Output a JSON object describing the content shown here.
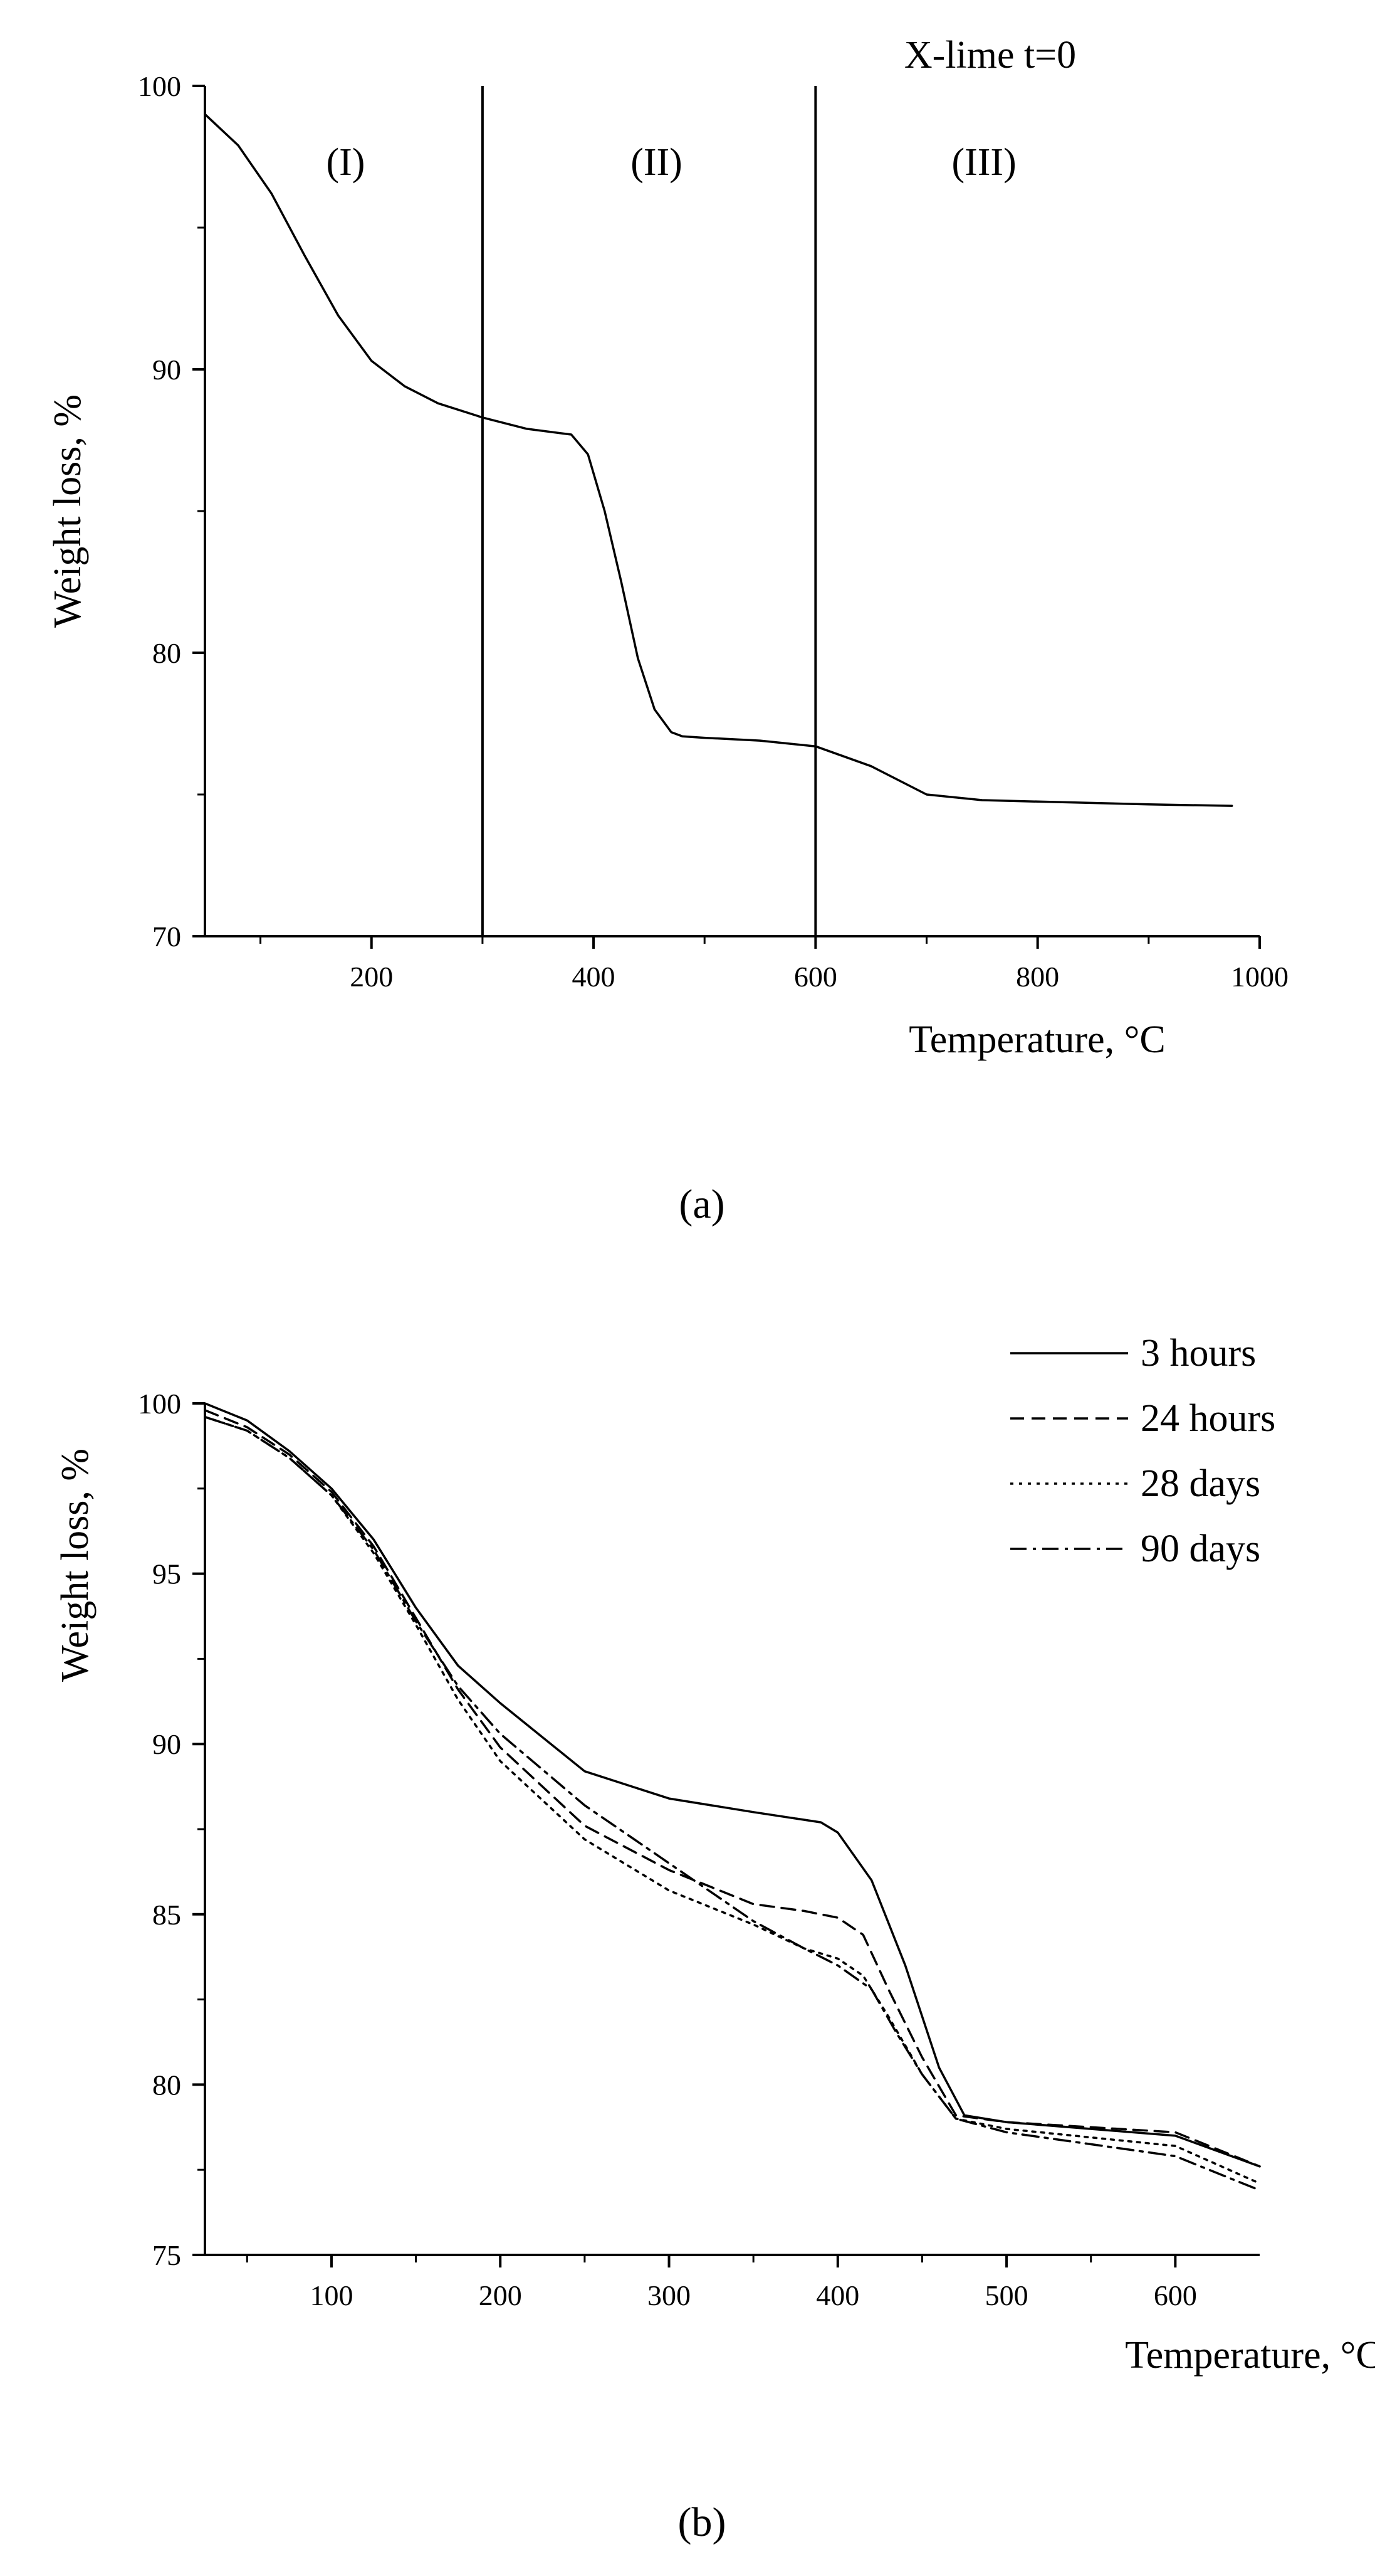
{
  "chart_data": [
    {
      "type": "line",
      "panel_label": "(a)",
      "title": "X-lime t=0",
      "xlabel": "Temperature, °C",
      "ylabel": "Weight loss, %",
      "xlim": [
        50,
        1000
      ],
      "ylim": [
        70,
        100
      ],
      "xticks": [
        200,
        400,
        600,
        800,
        1000
      ],
      "yticks": [
        70,
        80,
        90,
        100
      ],
      "grid": false,
      "vlines": [
        300,
        600
      ],
      "region_labels": [
        {
          "text": "(I)",
          "x": 175,
          "y": 97.3
        },
        {
          "text": "(II)",
          "x": 455,
          "y": 97.3
        },
        {
          "text": "(III)",
          "x": 750,
          "y": 97.3
        }
      ],
      "series": [
        {
          "name": "X-lime t=0",
          "style": "solid",
          "x": [
            50,
            80,
            110,
            140,
            170,
            200,
            230,
            260,
            300,
            340,
            380,
            395,
            410,
            425,
            440,
            455,
            470,
            480,
            500,
            550,
            600,
            650,
            700,
            750,
            800,
            900,
            975
          ],
          "y": [
            99,
            97.9,
            96.2,
            94.0,
            91.9,
            90.3,
            89.4,
            88.8,
            88.3,
            87.9,
            87.7,
            87.0,
            85.0,
            82.5,
            79.8,
            78.0,
            77.2,
            77.05,
            77.0,
            76.9,
            76.7,
            76.0,
            75.0,
            74.8,
            74.75,
            74.65,
            74.6
          ]
        }
      ]
    },
    {
      "type": "line",
      "panel_label": "(b)",
      "title": "",
      "xlabel": "Temperature, °C",
      "ylabel": "Weight loss, %",
      "xlim": [
        25,
        650
      ],
      "ylim": [
        75,
        100
      ],
      "xticks": [
        100,
        200,
        300,
        400,
        500,
        600
      ],
      "yticks": [
        75,
        80,
        85,
        90,
        95,
        100
      ],
      "grid": false,
      "legend": {
        "position": "top-right",
        "entries": [
          "3 hours",
          "24 hours",
          "28 days",
          "90 days"
        ]
      },
      "series": [
        {
          "name": "3 hours",
          "style": "solid",
          "x": [
            25,
            50,
            75,
            100,
            125,
            150,
            175,
            200,
            250,
            300,
            350,
            390,
            400,
            420,
            440,
            460,
            475,
            500,
            600,
            650
          ],
          "y": [
            100,
            99.5,
            98.6,
            97.5,
            96.0,
            94.0,
            92.3,
            91.2,
            89.2,
            88.4,
            88.0,
            87.7,
            87.4,
            86.0,
            83.5,
            80.5,
            79.1,
            78.9,
            78.5,
            77.6
          ]
        },
        {
          "name": "24 hours",
          "style": "dashed",
          "x": [
            25,
            50,
            75,
            100,
            125,
            150,
            175,
            200,
            250,
            300,
            350,
            380,
            400,
            415,
            430,
            450,
            470,
            500,
            600,
            650
          ],
          "y": [
            99.8,
            99.3,
            98.5,
            97.4,
            95.8,
            93.7,
            91.6,
            89.9,
            87.6,
            86.3,
            85.3,
            85.1,
            84.9,
            84.4,
            82.8,
            80.8,
            79.1,
            78.9,
            78.6,
            77.6
          ]
        },
        {
          "name": "28 days",
          "style": "dotted",
          "x": [
            25,
            50,
            75,
            100,
            125,
            150,
            175,
            200,
            250,
            300,
            350,
            380,
            400,
            415,
            430,
            450,
            470,
            500,
            600,
            650
          ],
          "y": [
            99.6,
            99.2,
            98.4,
            97.3,
            95.6,
            93.5,
            91.3,
            89.5,
            87.2,
            85.7,
            84.7,
            84.0,
            83.7,
            83.2,
            82.0,
            80.3,
            79.0,
            78.7,
            78.2,
            77.1
          ]
        },
        {
          "name": "90 days",
          "style": "dashdot",
          "x": [
            25,
            50,
            75,
            100,
            125,
            150,
            175,
            200,
            250,
            300,
            350,
            380,
            400,
            420,
            435,
            450,
            470,
            500,
            600,
            650
          ],
          "y": [
            99.6,
            99.2,
            98.4,
            97.3,
            95.7,
            93.6,
            91.7,
            90.3,
            88.2,
            86.5,
            84.8,
            84.0,
            83.5,
            82.8,
            81.5,
            80.3,
            79.0,
            78.6,
            77.9,
            76.9
          ]
        }
      ]
    }
  ]
}
